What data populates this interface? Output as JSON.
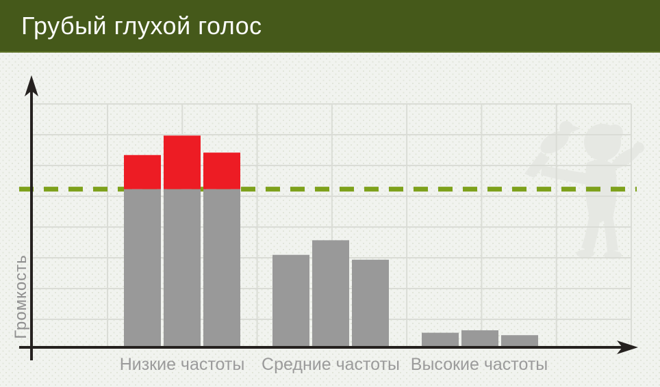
{
  "header": {
    "title": "Грубый глухой голос",
    "bg_color": "#45591a",
    "text_color": "#fbfcfa"
  },
  "chart_data": {
    "type": "bar",
    "title": "Грубый глухой голос",
    "ylabel": "Громкость",
    "xlabel": "",
    "categories": [
      "Низкие частоты",
      "Средние частоты",
      "Высокие частоты"
    ],
    "groups": [
      [
        79,
        87,
        80
      ],
      [
        38,
        44,
        36
      ],
      [
        6,
        7,
        5
      ]
    ],
    "threshold": 65,
    "ylim": [
      0,
      100
    ],
    "grid": true,
    "legend": "none",
    "bar_color": "#999999",
    "over_threshold_color": "#ed1c24",
    "threshold_color": "#7ea11c",
    "grid_color": "#dadcd6",
    "axis_color": "#25211f",
    "label_color": "#9b9b9b",
    "annotation": "Части столбцов низких частот выше пунктирной линии нормы выделены красным"
  },
  "decorations": {
    "silhouette": "child-reaching-for-bird",
    "silhouette_color": "#e6e8e3"
  }
}
